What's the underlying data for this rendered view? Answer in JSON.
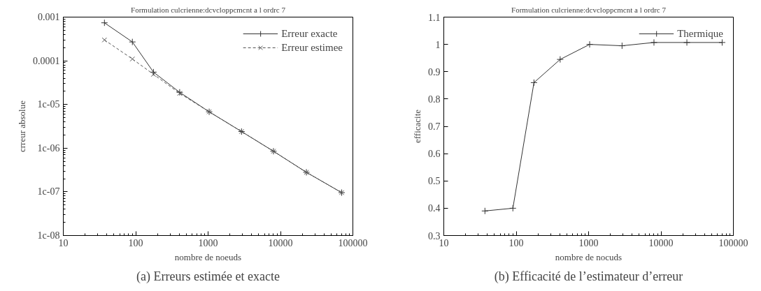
{
  "chart_data": [
    {
      "type": "line",
      "title": "Formulation culcrienne:dcvcloppcmcnt a l ordrc 7",
      "xlabel": "nombre de noeuds",
      "ylabel": "crreur absolue",
      "annotations": [
        "(a) Erreurs estimée et exacte"
      ],
      "log": "xy",
      "grid": false,
      "legend": "top right",
      "xlim": [
        10,
        100000
      ],
      "xticks": [
        10,
        100,
        1000,
        10000,
        100000
      ],
      "ylim": [
        1e-08,
        0.001
      ],
      "yticks": [
        {
          "value": 1e-08,
          "label": "1c-08"
        },
        {
          "value": 1e-07,
          "label": "1c-07"
        },
        {
          "value": 1e-06,
          "label": "1c-06"
        },
        {
          "value": 1e-05,
          "label": "1c-05"
        },
        {
          "value": 0.0001,
          "label": "0.0001"
        },
        {
          "value": 0.001,
          "label": "0.001"
        }
      ],
      "x": [
        37,
        90,
        176,
        405,
        1035,
        2900,
        8000,
        22800,
        70000
      ],
      "series": [
        {
          "name": "Erreur exacte",
          "color": "#333333",
          "marker": "cross",
          "line_style": "solid",
          "values": [
            0.00074,
            0.00027,
            5.5e-05,
            1.9e-05,
            6.8e-06,
            2.4e-06,
            8.5e-07,
            2.8e-07,
            9.6e-08
          ]
        },
        {
          "name": "Erreur estimee",
          "color": "#555555",
          "marker": "x",
          "line_style": "dashed",
          "values": [
            0.0003,
            0.00011,
            4.9e-05,
            1.8e-05,
            6.8e-06,
            2.4e-06,
            8.5e-07,
            2.8e-07,
            9.6e-08
          ]
        }
      ]
    },
    {
      "type": "line",
      "title": "Formulation culcrienne:dcvcloppcmcnt a l ordrc 7",
      "xlabel": "nombre de nocuds",
      "ylabel": "efficacite",
      "annotations": [
        "(b) Efficacité de l’estimateur d’erreur"
      ],
      "log": "x",
      "grid": false,
      "legend": "top right",
      "xlim": [
        10,
        100000
      ],
      "xticks": [
        10,
        100,
        1000,
        10000,
        100000
      ],
      "ylim": [
        0.3,
        1.1
      ],
      "yticks": [
        0.3,
        0.4,
        0.5,
        0.6,
        0.7,
        0.8,
        0.9,
        1,
        1.1
      ],
      "x": [
        37,
        90,
        176,
        405,
        1035,
        2900,
        8000,
        22800,
        70000
      ],
      "series": [
        {
          "name": "Thermique",
          "color": "#333333",
          "marker": "cross",
          "line_style": "solid",
          "values": [
            0.39,
            0.4,
            0.86,
            0.945,
            1.0,
            0.995,
            1.007,
            1.007,
            1.007
          ]
        }
      ]
    }
  ]
}
